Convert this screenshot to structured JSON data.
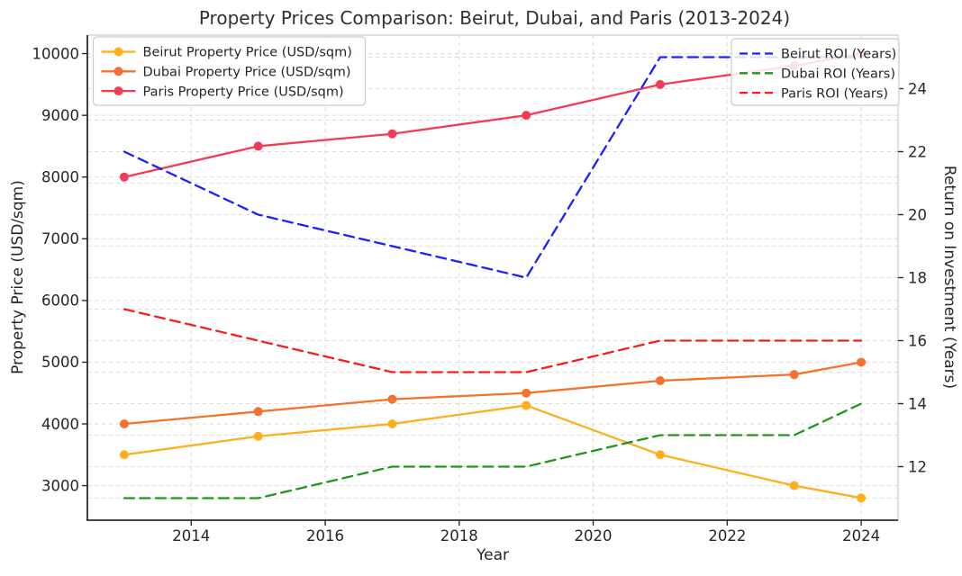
{
  "chart_data": {
    "type": "line",
    "title": "Property Prices Comparison: Beirut, Dubai, and Paris (2013-2024)",
    "xlabel": "Year",
    "ylabel_left": "Property Price (USD/sqm)",
    "ylabel_right": "Return on Investment (Years)",
    "x": [
      2013,
      2015,
      2017,
      2019,
      2021,
      2023,
      2024
    ],
    "series": [
      {
        "name": "Beirut Property Price (USD/sqm)",
        "axis": "left",
        "color": "#FFAE1C",
        "line": "solid",
        "marker": true,
        "values": [
          3500,
          3800,
          4000,
          4300,
          3500,
          3000,
          2800
        ]
      },
      {
        "name": "Dubai Property Price (USD/sqm)",
        "axis": "left",
        "color": "#F4722B",
        "line": "solid",
        "marker": true,
        "values": [
          4000,
          4200,
          4400,
          4500,
          4700,
          4800,
          5000
        ]
      },
      {
        "name": "Paris Property Price (USD/sqm)",
        "axis": "left",
        "color": "#F23B57",
        "line": "solid",
        "marker": true,
        "values": [
          8000,
          8500,
          8700,
          9000,
          9500,
          9800,
          10000
        ]
      },
      {
        "name": "Beirut ROI (Years)",
        "axis": "right",
        "color": "#1E1EFF",
        "line": "dashed",
        "marker": false,
        "values": [
          22,
          20,
          19,
          18,
          25,
          25,
          25
        ]
      },
      {
        "name": "Dubai ROI (Years)",
        "axis": "right",
        "color": "#1F961F",
        "line": "dashed",
        "marker": false,
        "values": [
          11,
          11,
          12,
          12,
          13,
          13,
          14
        ]
      },
      {
        "name": "Paris ROI (Years)",
        "axis": "right",
        "color": "#F81D1D",
        "line": "dashed",
        "marker": false,
        "values": [
          17,
          16,
          15,
          15,
          16,
          16,
          16
        ]
      }
    ],
    "x_ticks": [
      2014,
      2016,
      2018,
      2020,
      2022,
      2024
    ],
    "y_left_ticks": [
      3000,
      4000,
      5000,
      6000,
      7000,
      8000,
      9000,
      10000
    ],
    "y_right_ticks": [
      12,
      14,
      16,
      18,
      20,
      22,
      24
    ],
    "y_right_gridlines": [
      11,
      12,
      13,
      14,
      15,
      16,
      17,
      18,
      19,
      20,
      21,
      22,
      23,
      24,
      25
    ],
    "xlim": [
      2012.45,
      2024.55
    ],
    "ylim_left": [
      2440,
      10300
    ],
    "ylim_right": [
      10.3,
      25.7
    ],
    "grid": true,
    "legend_positions": {
      "left_axis_series": "upper left",
      "right_axis_series": "upper right"
    },
    "colors": {
      "grid": "#d9d9d9",
      "spine_dark": "#2b2b2b",
      "spine_light": "#cfcfcf",
      "legend_border": "#cccccc",
      "text": "#262626"
    }
  }
}
